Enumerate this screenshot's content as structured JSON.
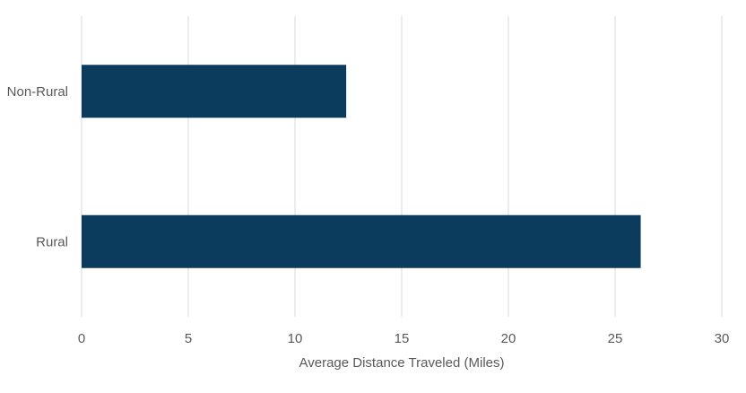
{
  "chart_data": {
    "type": "bar",
    "orientation": "horizontal",
    "categories": [
      "Non-Rural",
      "Rural"
    ],
    "values": [
      12.4,
      26.2
    ],
    "title": "",
    "xlabel": "Average Distance Traveled (Miles)",
    "ylabel": "",
    "xlim": [
      0,
      30
    ],
    "xticks": [
      0,
      5,
      10,
      15,
      20,
      25,
      30
    ],
    "grid": "vertical",
    "bar_color": "#0b3c5d",
    "grid_color": "#d9d9d9"
  }
}
